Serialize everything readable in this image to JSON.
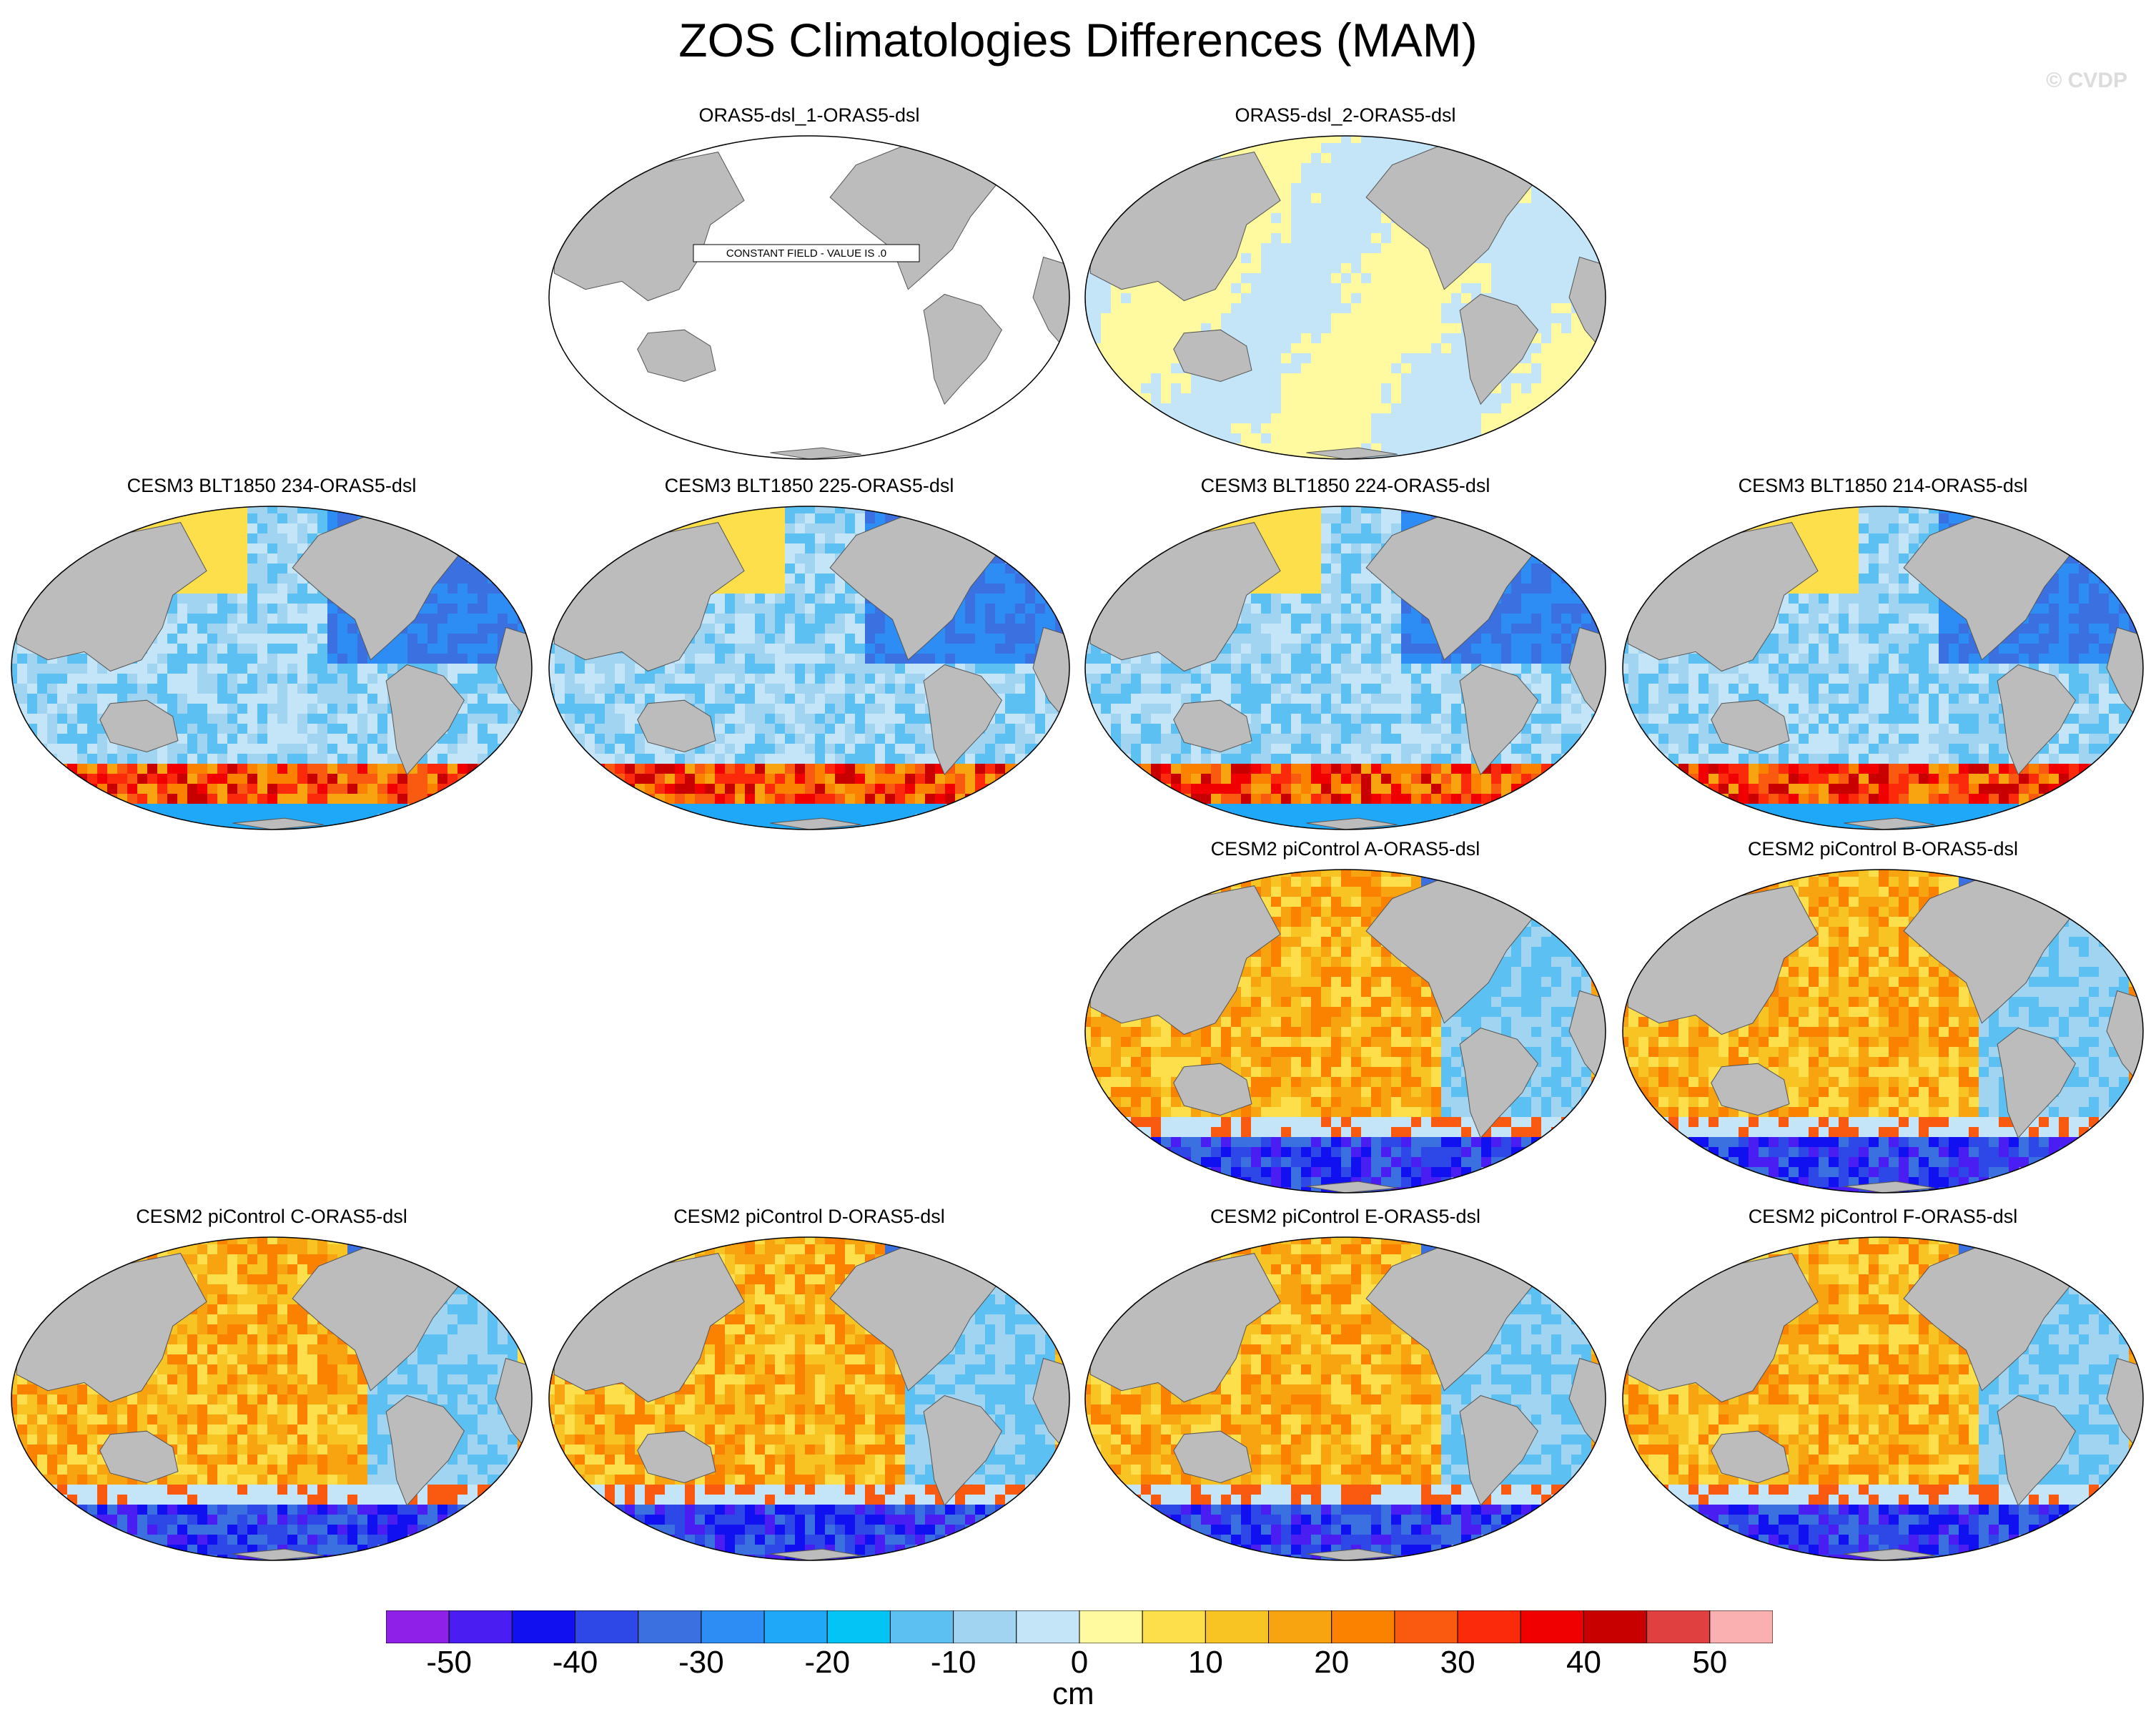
{
  "title": "ZOS Climatologies Differences (MAM)",
  "credit": "© CVDP",
  "constant_field_label": "CONSTANT FIELD - VALUE IS .0",
  "panels": [
    {
      "title": "ORAS5-dsl_1-ORAS5-dsl",
      "pattern": "constant"
    },
    {
      "title": "ORAS5-dsl_2-ORAS5-dsl",
      "pattern": "near_zero"
    },
    {
      "title": "CESM3 BLT1850 234-ORAS5-dsl",
      "pattern": "cesm3"
    },
    {
      "title": "CESM3 BLT1850 225-ORAS5-dsl",
      "pattern": "cesm3"
    },
    {
      "title": "CESM3 BLT1850 224-ORAS5-dsl",
      "pattern": "cesm3"
    },
    {
      "title": "CESM3 BLT1850 214-ORAS5-dsl",
      "pattern": "cesm3"
    },
    {
      "title": "CESM2 piControl A-ORAS5-dsl",
      "pattern": "cesm2"
    },
    {
      "title": "CESM2 piControl B-ORAS5-dsl",
      "pattern": "cesm2"
    },
    {
      "title": "CESM2 piControl C-ORAS5-dsl",
      "pattern": "cesm2"
    },
    {
      "title": "CESM2 piControl D-ORAS5-dsl",
      "pattern": "cesm2"
    },
    {
      "title": "CESM2 piControl E-ORAS5-dsl",
      "pattern": "cesm2"
    },
    {
      "title": "CESM2 piControl F-ORAS5-dsl",
      "pattern": "cesm2"
    }
  ],
  "colorbar": {
    "unit": "cm",
    "tick_labels": [
      "-50",
      "-40",
      "-30",
      "-20",
      "-10",
      "0",
      "10",
      "20",
      "30",
      "40",
      "50"
    ],
    "colors": [
      "#8f20e8",
      "#4a1ef2",
      "#1010f0",
      "#2e48e8",
      "#3a70e0",
      "#2e8cf5",
      "#20a8f8",
      "#03c4f5",
      "#5cc0f2",
      "#a0d4f0",
      "#c4e4f8",
      "#fff9a0",
      "#fcdf4a",
      "#f8c423",
      "#f8a410",
      "#fa8200",
      "#fa5a10",
      "#fa2a0a",
      "#f00000",
      "#c80000",
      "#e04040",
      "#fab0b0"
    ]
  },
  "land_color": "#bcbcbc"
}
